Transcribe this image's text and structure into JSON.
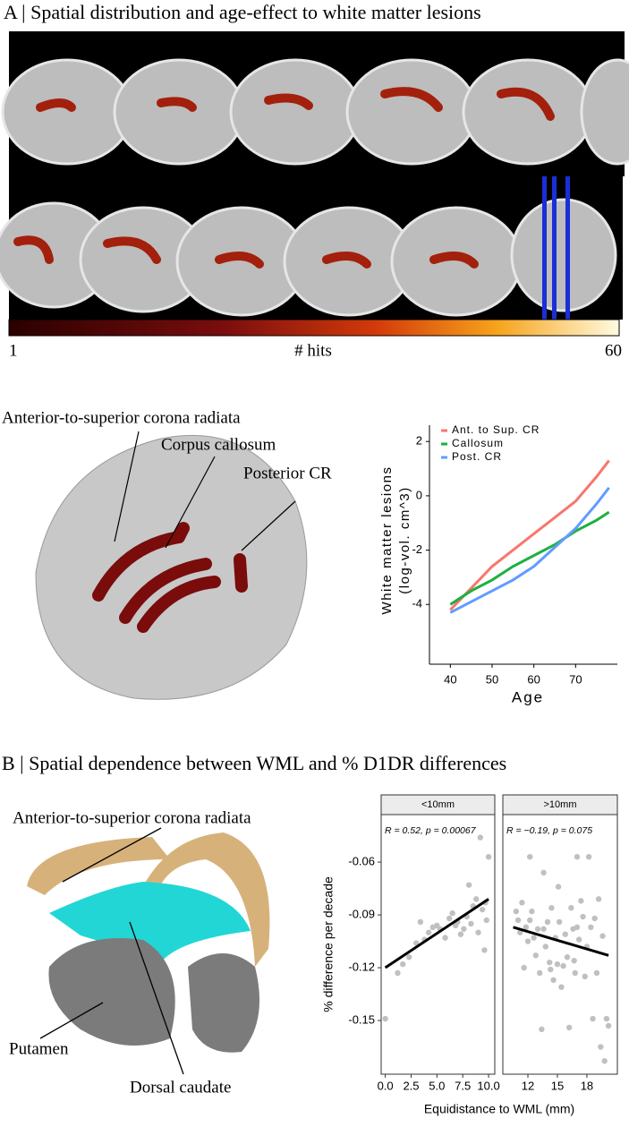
{
  "panel_a": {
    "title": "A | Spatial distribution and age-effect to white matter lesions",
    "colorbar": {
      "range": [
        1,
        60
      ],
      "label": "# hits"
    },
    "labels": [
      "Anterior-to-superior corona radiata",
      "Corpus callosum",
      "Posterior CR"
    ]
  },
  "panel_b": {
    "title": "B | Spatial dependence between WML and % D1DR differences",
    "labels": [
      "Anterior-to-superior corona radiata",
      "Putamen",
      "Dorsal caudate"
    ]
  },
  "chart_data": [
    {
      "type": "line",
      "x_label": "Age",
      "y_label": [
        "White matter lesions",
        "(log-vol. cm^3)"
      ],
      "x": [
        40,
        45,
        50,
        55,
        60,
        65,
        70,
        75,
        78
      ],
      "xlim": [
        35,
        80
      ],
      "xticks": [
        40,
        50,
        60,
        70
      ],
      "ylim": [
        -6.2,
        2.6
      ],
      "yticks": [
        -4,
        -2,
        0,
        2
      ],
      "series": [
        {
          "name": "Ant. to Sup. CR",
          "color": "#f8766d",
          "values": [
            -4.2,
            -3.4,
            -2.6,
            -2.0,
            -1.4,
            -0.8,
            -0.2,
            0.7,
            1.3
          ]
        },
        {
          "name": "Callosum",
          "color": "#1eb040",
          "values": [
            -4.0,
            -3.5,
            -3.1,
            -2.6,
            -2.2,
            -1.8,
            -1.3,
            -0.9,
            -0.6
          ]
        },
        {
          "name": "Post. CR",
          "color": "#619cff",
          "values": [
            -4.3,
            -3.9,
            -3.5,
            -3.1,
            -2.6,
            -1.9,
            -1.2,
            -0.3,
            0.3
          ]
        }
      ]
    },
    {
      "type": "scatter",
      "x_label": "Equidistance to WML (mm)",
      "y_label": "% difference per decade",
      "color": "#c0c0c0",
      "ylim": [
        -0.1805,
        -0.033
      ],
      "yticks": [
        -0.06,
        -0.09,
        -0.12,
        -0.15
      ],
      "panels": [
        {
          "title": "<10mm",
          "annotation": "R = 0.52, p = 0.00067",
          "xlim": [
            -0.4,
            10.6
          ],
          "xticks": [
            {
              "value": 0,
              "label": "0.0"
            },
            2.5,
            {
              "value": 5,
              "label": "5.0"
            },
            7.5,
            {
              "value": 10,
              "label": "10.0"
            }
          ],
          "x": [
            0,
            1.2,
            1.7,
            2.3,
            3,
            3.4,
            3.8,
            4.2,
            4.6,
            5,
            5.3,
            5.8,
            6.2,
            6.5,
            6.8,
            7,
            7.3,
            7.6,
            7.9,
            8.1,
            8.3,
            8.5,
            8.8,
            9,
            9.2,
            9.4,
            9.6,
            9.8,
            10,
            9.7
          ],
          "y": [
            -0.149,
            -0.123,
            -0.118,
            -0.114,
            -0.106,
            -0.094,
            -0.104,
            -0.1,
            -0.097,
            -0.096,
            -0.098,
            -0.103,
            -0.092,
            -0.089,
            -0.096,
            -0.094,
            -0.101,
            -0.098,
            -0.091,
            -0.073,
            -0.095,
            -0.085,
            -0.081,
            -0.1,
            -0.046,
            -0.087,
            -0.11,
            -0.093,
            -0.057,
            -0.083
          ],
          "fit": {
            "x": [
              0,
              10
            ],
            "y": [
              -0.12,
              -0.081
            ]
          }
        },
        {
          "title": ">10mm",
          "annotation": "R = −0.19, p = 0.075",
          "xlim": [
            9.45,
            21.1
          ],
          "xticks": [
            12,
            15,
            18
          ],
          "x": [
            10.8,
            11,
            11.2,
            11.4,
            11.6,
            11.8,
            12,
            12.2,
            12.4,
            12.6,
            12.8,
            13,
            13.2,
            13.4,
            13.6,
            13.8,
            14,
            14.2,
            14.4,
            14.6,
            14.8,
            15,
            15.2,
            15.4,
            15.6,
            15.8,
            16,
            16.2,
            16.4,
            16.6,
            16.8,
            17,
            17.2,
            17.4,
            17.6,
            17.8,
            18,
            18.2,
            18.4,
            18.6,
            18.8,
            19,
            19.2,
            19.4,
            19.6,
            19.8,
            20,
            20.2,
            15.1,
            13.6,
            17,
            12.2,
            16.7,
            14.3
          ],
          "y": [
            -0.088,
            -0.093,
            -0.1,
            -0.083,
            -0.12,
            -0.097,
            -0.105,
            -0.093,
            -0.088,
            -0.103,
            -0.113,
            -0.098,
            -0.123,
            -0.155,
            -0.098,
            -0.108,
            -0.094,
            -0.117,
            -0.086,
            -0.127,
            -0.103,
            -0.118,
            -0.094,
            -0.131,
            -0.119,
            -0.101,
            -0.114,
            -0.154,
            -0.086,
            -0.098,
            -0.123,
            -0.097,
            -0.104,
            -0.082,
            -0.091,
            -0.125,
            -0.108,
            -0.057,
            -0.097,
            -0.149,
            -0.092,
            -0.123,
            -0.081,
            -0.165,
            -0.102,
            -0.173,
            -0.149,
            -0.153,
            -0.074,
            -0.066,
            -0.057,
            -0.057,
            -0.116,
            -0.121
          ],
          "fit": {
            "x": [
              10.5,
              20.2
            ],
            "y": [
              -0.097,
              -0.113
            ]
          }
        }
      ]
    }
  ]
}
